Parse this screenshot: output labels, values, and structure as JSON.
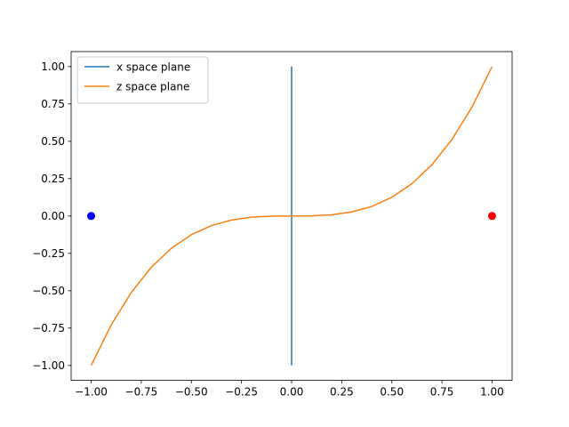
{
  "chart_data": {
    "type": "line",
    "title": "",
    "xlabel": "",
    "ylabel": "",
    "xlim": [
      -1.1,
      1.1
    ],
    "ylim": [
      -1.1,
      1.1
    ],
    "xticks": [
      -1.0,
      -0.75,
      -0.5,
      -0.25,
      0.0,
      0.25,
      0.5,
      0.75,
      1.0
    ],
    "xtick_labels": [
      "−1.00",
      "−0.75",
      "−0.50",
      "−0.25",
      "0.00",
      "0.25",
      "0.50",
      "0.75",
      "1.00"
    ],
    "yticks": [
      -1.0,
      -0.75,
      -0.5,
      -0.25,
      0.0,
      0.25,
      0.5,
      0.75,
      1.0
    ],
    "ytick_labels": [
      "−1.00",
      "−0.75",
      "−0.50",
      "−0.25",
      "0.00",
      "0.25",
      "0.50",
      "0.75",
      "1.00"
    ],
    "grid": false,
    "legend_position": "top-left",
    "series": [
      {
        "name": "x space plane",
        "color": "#1f77b4",
        "x": [
          0,
          0
        ],
        "y": [
          -1,
          1
        ]
      },
      {
        "name": "z space plane",
        "color": "#ff7f0e",
        "x": [
          -1.0,
          -0.9,
          -0.8,
          -0.7,
          -0.6,
          -0.5,
          -0.4,
          -0.3,
          -0.2,
          -0.1,
          0.0,
          0.1,
          0.2,
          0.3,
          0.4,
          0.5,
          0.6,
          0.7,
          0.8,
          0.9,
          1.0
        ],
        "y": [
          -1.0,
          -0.729,
          -0.512,
          -0.343,
          -0.216,
          -0.125,
          -0.064,
          -0.027,
          -0.008,
          -0.001,
          0.0,
          0.001,
          0.008,
          0.027,
          0.064,
          0.125,
          0.216,
          0.343,
          0.512,
          0.729,
          1.0
        ]
      }
    ],
    "points": [
      {
        "x": -1.0,
        "y": 0.0,
        "color": "#0000ff"
      },
      {
        "x": 1.0,
        "y": 0.0,
        "color": "#ff0000"
      }
    ]
  }
}
